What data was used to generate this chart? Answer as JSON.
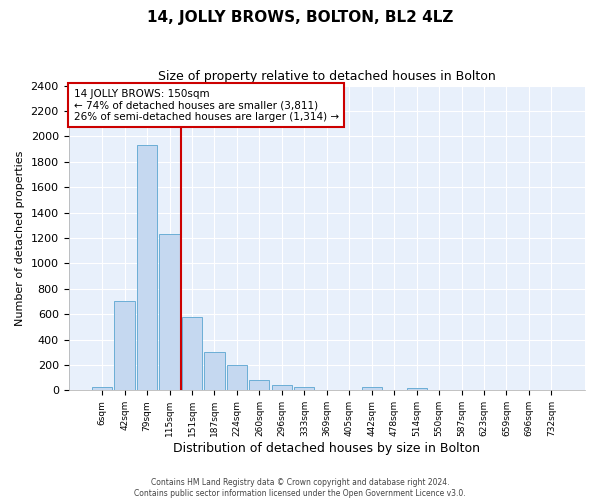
{
  "title": "14, JOLLY BROWS, BOLTON, BL2 4LZ",
  "subtitle": "Size of property relative to detached houses in Bolton",
  "xlabel": "Distribution of detached houses by size in Bolton",
  "ylabel": "Number of detached properties",
  "categories": [
    "6sqm",
    "42sqm",
    "79sqm",
    "115sqm",
    "151sqm",
    "187sqm",
    "224sqm",
    "260sqm",
    "296sqm",
    "333sqm",
    "369sqm",
    "405sqm",
    "442sqm",
    "478sqm",
    "514sqm",
    "550sqm",
    "587sqm",
    "623sqm",
    "659sqm",
    "696sqm",
    "732sqm"
  ],
  "values": [
    30,
    700,
    1930,
    1230,
    575,
    305,
    200,
    85,
    45,
    30,
    0,
    0,
    30,
    0,
    15,
    0,
    0,
    0,
    0,
    0,
    0
  ],
  "bar_color": "#c5d8f0",
  "bar_edge_color": "#6baed6",
  "vline_x": 3.5,
  "vline_color": "#cc0000",
  "annotation_text": "14 JOLLY BROWS: 150sqm\n← 74% of detached houses are smaller (3,811)\n26% of semi-detached houses are larger (1,314) →",
  "annotation_box_color": "#ffffff",
  "annotation_box_edge": "#cc0000",
  "ylim": [
    0,
    2400
  ],
  "yticks": [
    0,
    200,
    400,
    600,
    800,
    1000,
    1200,
    1400,
    1600,
    1800,
    2000,
    2200,
    2400
  ],
  "fig_background": "#ffffff",
  "plot_background": "#e8f0fb",
  "grid_color": "#ffffff",
  "footnote": "Contains HM Land Registry data © Crown copyright and database right 2024.\nContains public sector information licensed under the Open Government Licence v3.0."
}
